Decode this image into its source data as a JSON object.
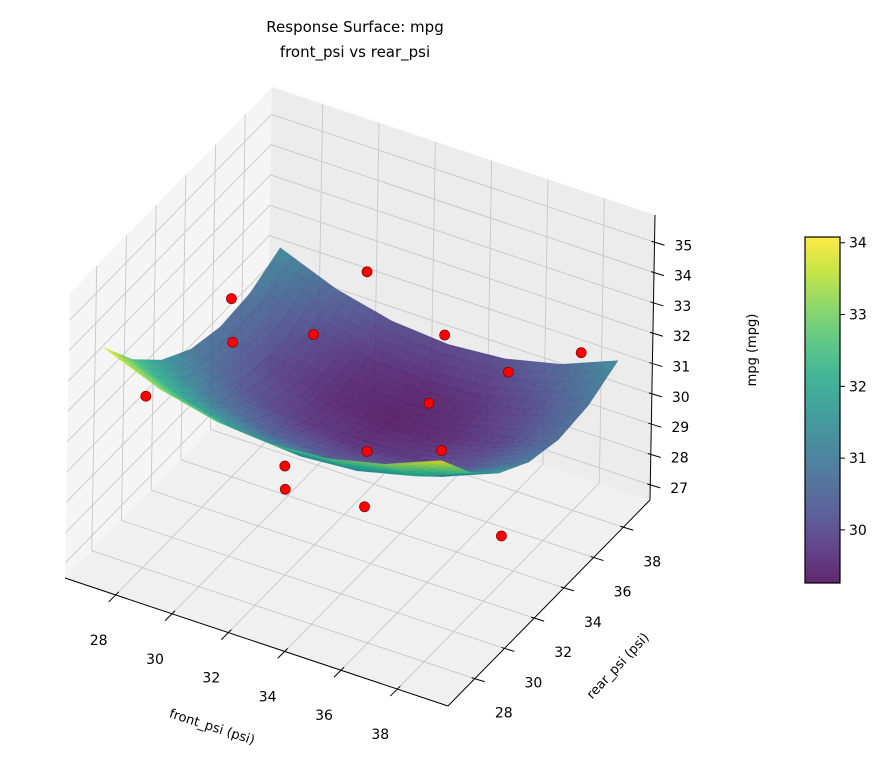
{
  "chart_data": {
    "type": "surface",
    "title": "Response Surface: mpg",
    "subtitle": "front_psi vs rear_psi",
    "xlabel": "front_psi (psi)",
    "ylabel": "rear_psi (psi)",
    "zlabel": "mpg (mpg)",
    "xlim": [
      26.2,
      39.8
    ],
    "ylim": [
      26.2,
      39.8
    ],
    "zlim": [
      26.5,
      35.9
    ],
    "xticks": [
      28,
      30,
      32,
      34,
      36,
      38
    ],
    "yticks": [
      28,
      30,
      32,
      34,
      36,
      38
    ],
    "zticks": [
      27,
      28,
      29,
      30,
      31,
      32,
      33,
      34,
      35
    ],
    "view": {
      "elevation": 30,
      "azimuth": -60
    },
    "grid": true,
    "colormap": "viridis",
    "surface_alpha": 0.85,
    "surface": {
      "front_psi": [
        27,
        29,
        31,
        33,
        35,
        37,
        39
      ],
      "rear_psi": [
        27,
        29,
        31,
        33,
        35,
        37,
        39
      ],
      "mpg": [
        [
          33.95,
          32.56,
          31.54,
          30.9,
          30.64,
          30.76,
          31.25
        ],
        [
          33.21,
          31.82,
          30.8,
          30.16,
          29.9,
          30.02,
          30.51
        ],
        [
          32.77,
          31.37,
          30.36,
          29.72,
          29.46,
          29.57,
          30.07
        ],
        [
          32.62,
          31.23,
          30.21,
          29.57,
          29.31,
          29.43,
          29.92
        ],
        [
          32.77,
          31.37,
          30.36,
          29.72,
          29.46,
          29.57,
          30.07
        ],
        [
          33.21,
          31.82,
          30.8,
          30.16,
          29.9,
          30.02,
          30.51
        ],
        [
          33.95,
          32.56,
          31.54,
          30.9,
          30.64,
          30.76,
          31.25
        ]
      ]
    },
    "points": [
      {
        "front_psi": 27.5,
        "rear_psi": 29.0,
        "mpg": 31.5
      },
      {
        "front_psi": 28.4,
        "rear_psi": 33.0,
        "mpg": 33.0
      },
      {
        "front_psi": 29.5,
        "rear_psi": 31.0,
        "mpg": 32.9
      },
      {
        "front_psi": 30.6,
        "rear_psi": 34.4,
        "mpg": 31.8
      },
      {
        "front_psi": 30.7,
        "rear_psi": 37.8,
        "mpg": 32.2
      },
      {
        "front_psi": 34.2,
        "rear_psi": 36.4,
        "mpg": 31.9
      },
      {
        "front_psi": 38.0,
        "rear_psi": 38.4,
        "mpg": 31.5
      },
      {
        "front_psi": 37.5,
        "rear_psi": 34.4,
        "mpg": 32.7
      },
      {
        "front_psi": 35.8,
        "rear_psi": 32.3,
        "mpg": 32.2
      },
      {
        "front_psi": 32.5,
        "rear_psi": 28.9,
        "mpg": 30.8
      },
      {
        "front_psi": 33.2,
        "rear_psi": 27.6,
        "mpg": 30.9
      },
      {
        "front_psi": 34.0,
        "rear_psi": 31.6,
        "mpg": 30.4
      },
      {
        "front_psi": 37.3,
        "rear_psi": 30.3,
        "mpg": 32.1
      },
      {
        "front_psi": 35.7,
        "rear_psi": 28.2,
        "mpg": 30.8
      },
      {
        "front_psi": 38.8,
        "rear_psi": 31.6,
        "mpg": 29.1
      }
    ],
    "point_color": "#ff0000",
    "point_edge_color": "#8b0000",
    "pane_color": "#f2f2f2",
    "grid_color": "#c8c8c8",
    "colorbar": {
      "min": 29.26,
      "max": 34.08,
      "ticks": [
        30,
        31,
        32,
        33,
        34
      ]
    }
  }
}
